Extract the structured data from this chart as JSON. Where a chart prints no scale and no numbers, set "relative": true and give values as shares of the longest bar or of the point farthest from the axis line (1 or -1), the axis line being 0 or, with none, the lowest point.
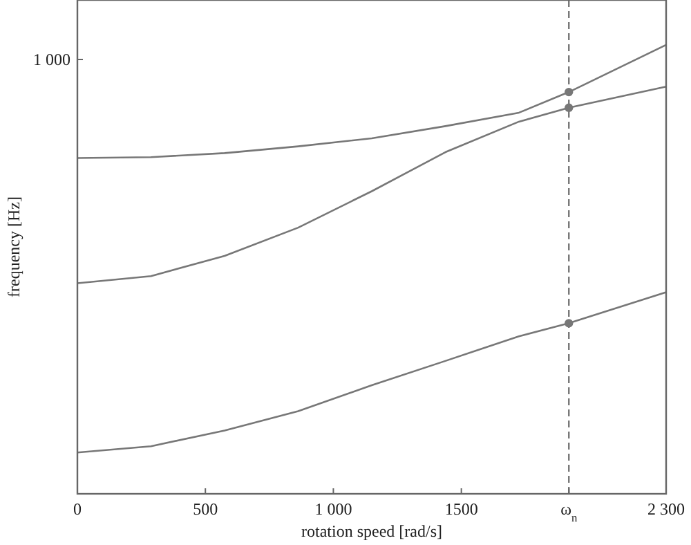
{
  "chart_data": {
    "type": "line",
    "xlabel": "rotation speed [rad/s]",
    "ylabel": "frequency [Hz]",
    "relative": true,
    "x": [
      0,
      287.5,
      575,
      862.5,
      1150,
      1437.5,
      1725,
      1920,
      2300
    ],
    "xlim": [
      0,
      2300
    ],
    "xticks": [
      0,
      500,
      {
        "value": 1000,
        "label": "1 000"
      },
      1500,
      {
        "value": 1920,
        "label": "ω$_{n}$"
      },
      {
        "value": 2300,
        "label": "2 300"
      }
    ],
    "annotations": [
      "1 000"
    ],
    "series": [
      {
        "color": "#777777",
        "values": [
          0.748,
          0.75,
          0.759,
          0.774,
          0.792,
          0.819,
          0.849,
          0.895,
          1.0
        ]
      },
      {
        "color": "#777777",
        "values": [
          0.469,
          0.485,
          0.53,
          0.593,
          0.674,
          0.761,
          0.829,
          0.86,
          0.907
        ]
      },
      {
        "color": "#777777",
        "values": [
          0.092,
          0.106,
          0.141,
          0.184,
          0.242,
          0.296,
          0.351,
          0.38,
          0.449
        ]
      },
      {
        "type": "scatter",
        "marker": "circle",
        "color": "#777777",
        "values": [
          null,
          null,
          null,
          null,
          null,
          null,
          null,
          0.895,
          null
        ]
      },
      {
        "type": "scatter",
        "marker": "circle",
        "color": "#777777",
        "values": [
          null,
          null,
          null,
          null,
          null,
          null,
          null,
          0.86,
          null
        ]
      },
      {
        "type": "scatter",
        "marker": "circle",
        "color": "#777777",
        "values": [
          null,
          null,
          null,
          null,
          null,
          null,
          null,
          0.38,
          null
        ]
      }
    ],
    "ref_lines": [
      {
        "axis": "x",
        "value": 1920,
        "color": "#777777",
        "line_style": "dashed"
      }
    ],
    "marker": "none",
    "line_style": "solid"
  }
}
